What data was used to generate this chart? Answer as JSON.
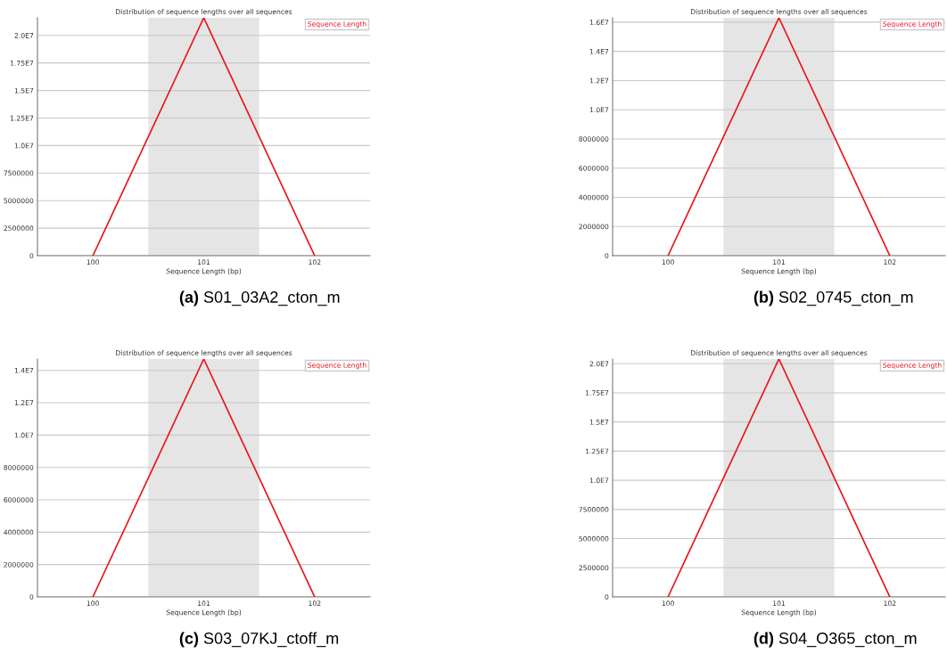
{
  "chart_data": [
    {
      "type": "line",
      "title": "Distribution of sequence lengths over all sequences",
      "xlabel": "Sequence Length (bp)",
      "annotations": [
        "(a) S01_03A2_cton_m"
      ],
      "x": [
        100,
        101,
        102
      ],
      "series": [
        {
          "name": "Sequence Length",
          "color": "#e8141c",
          "values": [
            0,
            21600000,
            0
          ]
        }
      ],
      "xlim": [
        99.5,
        102.5
      ],
      "xticks": [
        100,
        101,
        102
      ],
      "ylim": [
        0,
        21600000
      ],
      "yticks": [
        0,
        {
          "value": 2500000,
          "label": "2500000"
        },
        {
          "value": 5000000,
          "label": "5000000"
        },
        {
          "value": 7500000,
          "label": "7500000"
        },
        {
          "value": 10000000,
          "label": "1.0E7"
        },
        {
          "value": 12500000,
          "label": "1.25E7"
        },
        {
          "value": 15000000,
          "label": "1.5E7"
        },
        {
          "value": 17500000,
          "label": "1.75E7"
        },
        {
          "value": 20000000,
          "label": "2.0E7"
        }
      ],
      "bands": [
        {
          "axis": "x",
          "from": 100.5,
          "to": 101.5,
          "color": "#e5e5e5"
        }
      ],
      "grid": "y",
      "legend": "top right",
      "marker": "none",
      "line_style": "solid"
    },
    {
      "type": "line",
      "title": "Distribution of sequence lengths over all sequences",
      "xlabel": "Sequence Length (bp)",
      "annotations": [
        "(b) S02_0745_cton_m"
      ],
      "x": [
        100,
        101,
        102
      ],
      "series": [
        {
          "name": "Sequence Length",
          "color": "#e8141c",
          "values": [
            0,
            16300000,
            0
          ]
        }
      ],
      "xlim": [
        99.5,
        102.5
      ],
      "xticks": [
        100,
        101,
        102
      ],
      "ylim": [
        0,
        16300000
      ],
      "yticks": [
        0,
        {
          "value": 2000000,
          "label": "2000000"
        },
        {
          "value": 4000000,
          "label": "4000000"
        },
        {
          "value": 6000000,
          "label": "6000000"
        },
        {
          "value": 8000000,
          "label": "8000000"
        },
        {
          "value": 10000000,
          "label": "1.0E7"
        },
        {
          "value": 12000000,
          "label": "1.2E7"
        },
        {
          "value": 14000000,
          "label": "1.4E7"
        },
        {
          "value": 16000000,
          "label": "1.6E7"
        }
      ],
      "bands": [
        {
          "axis": "x",
          "from": 100.5,
          "to": 101.5,
          "color": "#e5e5e5"
        }
      ],
      "grid": "y",
      "legend": "top right",
      "marker": "none",
      "line_style": "solid"
    },
    {
      "type": "line",
      "title": "Distribution of sequence lengths over all sequences",
      "xlabel": "Sequence Length (bp)",
      "annotations": [
        "(c) S03_07KJ_ctoff_m"
      ],
      "x": [
        100,
        101,
        102
      ],
      "series": [
        {
          "name": "Sequence Length",
          "color": "#e8141c",
          "values": [
            0,
            14700000,
            0
          ]
        }
      ],
      "xlim": [
        99.5,
        102.5
      ],
      "xticks": [
        100,
        101,
        102
      ],
      "ylim": [
        0,
        14700000
      ],
      "yticks": [
        0,
        {
          "value": 2000000,
          "label": "2000000"
        },
        {
          "value": 4000000,
          "label": "4000000"
        },
        {
          "value": 6000000,
          "label": "6000000"
        },
        {
          "value": 8000000,
          "label": "8000000"
        },
        {
          "value": 10000000,
          "label": "1.0E7"
        },
        {
          "value": 12000000,
          "label": "1.2E7"
        },
        {
          "value": 14000000,
          "label": "1.4E7"
        }
      ],
      "bands": [
        {
          "axis": "x",
          "from": 100.5,
          "to": 101.5,
          "color": "#e5e5e5"
        }
      ],
      "grid": "y",
      "legend": "top right",
      "marker": "none",
      "line_style": "solid"
    },
    {
      "type": "line",
      "title": "Distribution of sequence lengths over all sequences",
      "xlabel": "Sequence Length (bp)",
      "annotations": [
        "(d) S04_O365_cton_m"
      ],
      "x": [
        100,
        101,
        102
      ],
      "series": [
        {
          "name": "Sequence Length",
          "color": "#e8141c",
          "values": [
            0,
            20400000,
            0
          ]
        }
      ],
      "xlim": [
        99.5,
        102.5
      ],
      "xticks": [
        100,
        101,
        102
      ],
      "ylim": [
        0,
        20400000
      ],
      "yticks": [
        0,
        {
          "value": 2500000,
          "label": "2500000"
        },
        {
          "value": 5000000,
          "label": "5000000"
        },
        {
          "value": 7500000,
          "label": "7500000"
        },
        {
          "value": 10000000,
          "label": "1.0E7"
        },
        {
          "value": 12500000,
          "label": "1.25E7"
        },
        {
          "value": 15000000,
          "label": "1.5E7"
        },
        {
          "value": 17500000,
          "label": "1.75E7"
        },
        {
          "value": 20000000,
          "label": "2.0E7"
        }
      ],
      "bands": [
        {
          "axis": "x",
          "from": 100.5,
          "to": 101.5,
          "color": "#e5e5e5"
        }
      ],
      "grid": "y",
      "legend": "top right",
      "marker": "none",
      "line_style": "solid"
    }
  ]
}
